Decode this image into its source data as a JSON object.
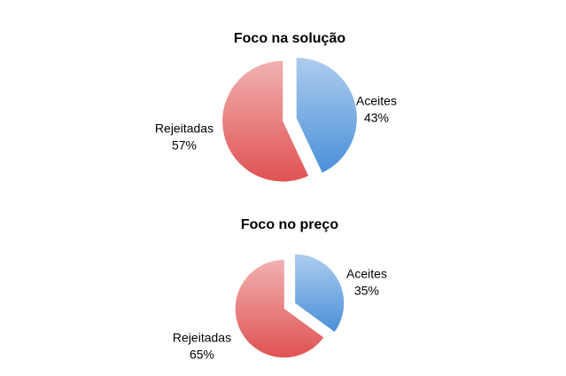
{
  "chart_data": [
    {
      "type": "pie",
      "title": "Foco na solução",
      "categories": [
        "Aceites",
        "Rejeitadas"
      ],
      "values": [
        43,
        57
      ],
      "value_labels": [
        "43%",
        "57%"
      ],
      "colors": [
        "#4a90d9",
        "#e05252"
      ]
    },
    {
      "type": "pie",
      "title": "Foco no preço",
      "categories": [
        "Aceites",
        "Rejeitadas"
      ],
      "values": [
        35,
        65
      ],
      "value_labels": [
        "35%",
        "65%"
      ],
      "colors": [
        "#4a90d9",
        "#e05252"
      ]
    }
  ]
}
